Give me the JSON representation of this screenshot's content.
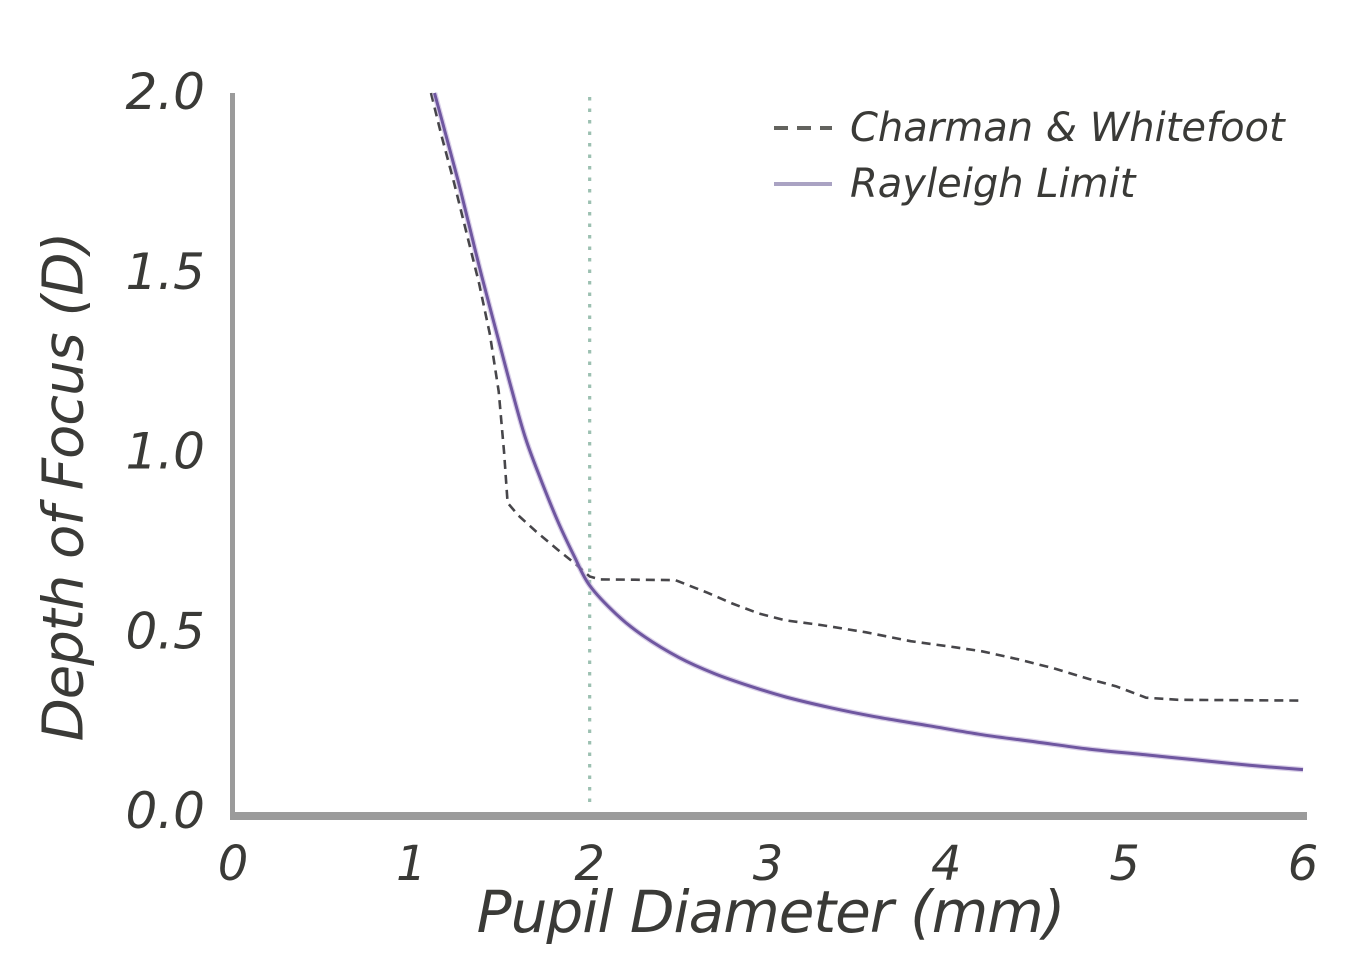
{
  "page": {
    "background": "#ffffff"
  },
  "axes": {
    "x_label": "Pupil Diameter (mm)",
    "y_label": "Depth of Focus (D)",
    "spine_color": "#9b9b9b",
    "text_color": "#3a3a37"
  },
  "legend": {
    "position": "top-right",
    "sample_colors": {
      "charman": "#63635e",
      "rayleigh": "#aaa3c3"
    }
  },
  "chart_data": {
    "type": "line",
    "title": "",
    "xlabel": "Pupil Diameter (mm)",
    "ylabel": "Depth of Focus (D)",
    "xlim": [
      0,
      6
    ],
    "ylim": [
      0,
      2
    ],
    "grid": false,
    "legend_position": "top-right",
    "xticks": [
      {
        "label": "0",
        "value": 0
      },
      {
        "label": "1",
        "value": 1
      },
      {
        "label": "2",
        "value": 2
      },
      {
        "label": "3",
        "value": 3
      },
      {
        "label": "4",
        "value": 4
      },
      {
        "label": "5",
        "value": 5
      },
      {
        "label": "6",
        "value": 6
      }
    ],
    "yticks": [
      {
        "label": "0.0",
        "value": 0
      },
      {
        "label": "0.5",
        "value": 0.5
      },
      {
        "label": "1.0",
        "value": 1
      },
      {
        "label": "1.5",
        "value": 1.5
      },
      {
        "label": "2.0",
        "value": 2
      }
    ],
    "series": [
      {
        "name": "Charman & Whitefoot",
        "style": "dashed",
        "color": "#47464a",
        "smooth": false,
        "points": [
          [
            1.11,
            2.0
          ],
          [
            1.17,
            1.88
          ],
          [
            1.24,
            1.75
          ],
          [
            1.31,
            1.61
          ],
          [
            1.38,
            1.47
          ],
          [
            1.44,
            1.33
          ],
          [
            1.49,
            1.17
          ],
          [
            1.52,
            1.0
          ],
          [
            1.54,
            0.86
          ],
          [
            1.6,
            0.825
          ],
          [
            1.7,
            0.78
          ],
          [
            1.82,
            0.73
          ],
          [
            1.92,
            0.69
          ],
          [
            2.0,
            0.655
          ],
          [
            2.06,
            0.647
          ],
          [
            2.48,
            0.645
          ],
          [
            2.66,
            0.61
          ],
          [
            2.8,
            0.58
          ],
          [
            2.95,
            0.552
          ],
          [
            3.1,
            0.533
          ],
          [
            3.3,
            0.52
          ],
          [
            3.55,
            0.5
          ],
          [
            3.8,
            0.475
          ],
          [
            4.05,
            0.458
          ],
          [
            4.2,
            0.447
          ],
          [
            4.4,
            0.425
          ],
          [
            4.6,
            0.4
          ],
          [
            4.8,
            0.37
          ],
          [
            4.95,
            0.35
          ],
          [
            5.12,
            0.318
          ],
          [
            5.3,
            0.312
          ],
          [
            6.0,
            0.31
          ]
        ]
      },
      {
        "name": "Rayleigh Limit",
        "style": "solid",
        "color": "#6f57a0",
        "halo_color": "#b9a8d6",
        "smooth": true,
        "points": [
          [
            1.13,
            2.0
          ],
          [
            1.19,
            1.89
          ],
          [
            1.26,
            1.76
          ],
          [
            1.33,
            1.62
          ],
          [
            1.4,
            1.48
          ],
          [
            1.48,
            1.33
          ],
          [
            1.56,
            1.18
          ],
          [
            1.64,
            1.04
          ],
          [
            1.73,
            0.92
          ],
          [
            1.82,
            0.81
          ],
          [
            1.91,
            0.715
          ],
          [
            2.0,
            0.63
          ],
          [
            2.15,
            0.55
          ],
          [
            2.3,
            0.49
          ],
          [
            2.5,
            0.43
          ],
          [
            2.7,
            0.385
          ],
          [
            2.9,
            0.35
          ],
          [
            3.1,
            0.32
          ],
          [
            3.35,
            0.29
          ],
          [
            3.6,
            0.265
          ],
          [
            3.9,
            0.24
          ],
          [
            4.2,
            0.215
          ],
          [
            4.5,
            0.195
          ],
          [
            4.8,
            0.175
          ],
          [
            5.1,
            0.16
          ],
          [
            5.4,
            0.145
          ],
          [
            5.7,
            0.13
          ],
          [
            6.0,
            0.118
          ]
        ]
      }
    ],
    "annotations": [
      {
        "type": "vline",
        "x": 2,
        "style": "dotted",
        "color": "#9cc0b1"
      }
    ]
  }
}
